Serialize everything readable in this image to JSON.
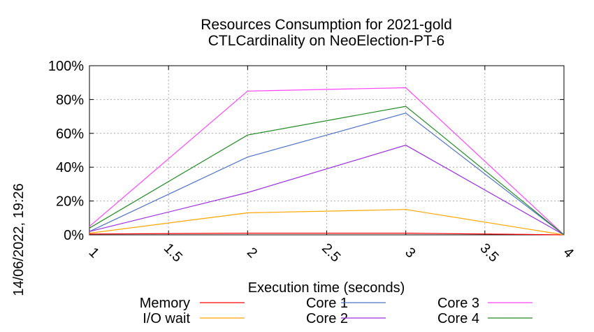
{
  "chart_data": {
    "type": "line",
    "title": "Resources Consumption for 2021-gold",
    "subtitle": "CTLCardinality on NeoElection-PT-6",
    "xlabel": "Execution time (seconds)",
    "ylabel": "",
    "side_label": "14/06/2022, 19:26",
    "xlim": [
      1,
      4
    ],
    "ylim": [
      0,
      100
    ],
    "x_ticks": [
      "1",
      "1.5",
      "2",
      "2.5",
      "3",
      "3.5",
      "4"
    ],
    "y_ticks": [
      "0%",
      "20%",
      "40%",
      "60%",
      "80%",
      "100%"
    ],
    "grid": true,
    "legend_position": "bottom",
    "x": [
      1,
      2,
      3,
      4
    ],
    "series": [
      {
        "name": "Memory",
        "color": "#ff0000",
        "values": [
          0.5,
          1,
          1,
          0
        ]
      },
      {
        "name": "I/O wait",
        "color": "#ffa500",
        "values": [
          1,
          13,
          15,
          0
        ]
      },
      {
        "name": "Core 1",
        "color": "#4f74c8",
        "values": [
          2,
          46,
          72,
          0
        ]
      },
      {
        "name": "Core 2",
        "color": "#9a2ee0",
        "values": [
          2,
          25,
          53,
          0
        ]
      },
      {
        "name": "Core 3",
        "color": "#ff44ff",
        "values": [
          5,
          85,
          87,
          0
        ]
      },
      {
        "name": "Core 4",
        "color": "#228b22",
        "values": [
          4,
          59,
          76,
          0
        ]
      }
    ]
  }
}
